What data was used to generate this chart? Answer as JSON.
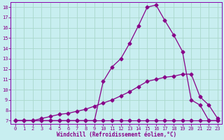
{
  "xlabel": "Windchill (Refroidissement éolien,°C)",
  "background_color": "#c8eef0",
  "grid_color": "#aad8cc",
  "line_color": "#880088",
  "spine_color": "#8800aa",
  "xlim": [
    -0.5,
    23.5
  ],
  "ylim": [
    6.7,
    18.5
  ],
  "yticks": [
    7,
    8,
    9,
    10,
    11,
    12,
    13,
    14,
    15,
    16,
    17,
    18
  ],
  "xticks": [
    0,
    1,
    2,
    3,
    4,
    5,
    6,
    7,
    8,
    9,
    10,
    11,
    12,
    13,
    14,
    15,
    16,
    17,
    18,
    19,
    20,
    21,
    22,
    23
  ],
  "line1_x": [
    0,
    1,
    2,
    3,
    4,
    5,
    6,
    7,
    8,
    9,
    10,
    11,
    12,
    13,
    14,
    15,
    16,
    17,
    18,
    19,
    20,
    21,
    22,
    23
  ],
  "line1_y": [
    7.0,
    7.0,
    7.0,
    7.0,
    7.0,
    7.0,
    7.0,
    7.0,
    7.0,
    7.0,
    7.0,
    7.0,
    7.0,
    7.0,
    7.0,
    7.0,
    7.0,
    7.0,
    7.0,
    7.0,
    7.0,
    7.0,
    7.0,
    7.0
  ],
  "line2_x": [
    0,
    1,
    2,
    3,
    4,
    5,
    6,
    7,
    8,
    9,
    10,
    11,
    12,
    13,
    14,
    15,
    16,
    17,
    18,
    19,
    20,
    21,
    22,
    23
  ],
  "line2_y": [
    7.0,
    7.0,
    7.0,
    7.2,
    7.4,
    7.6,
    7.7,
    7.9,
    8.1,
    8.4,
    8.7,
    9.0,
    9.4,
    9.8,
    10.3,
    10.8,
    11.0,
    11.2,
    11.3,
    11.5,
    11.5,
    9.3,
    8.5,
    7.2
  ],
  "line3_x": [
    0,
    1,
    2,
    3,
    4,
    5,
    6,
    7,
    8,
    9,
    10,
    11,
    12,
    13,
    14,
    15,
    16,
    17,
    18,
    19,
    20,
    21,
    22,
    23
  ],
  "line3_y": [
    7.0,
    7.0,
    7.0,
    7.0,
    7.0,
    7.0,
    7.0,
    7.0,
    7.0,
    7.0,
    10.8,
    12.2,
    13.0,
    14.5,
    16.2,
    18.0,
    18.2,
    16.7,
    15.3,
    13.7,
    9.0,
    8.5,
    7.0,
    7.0
  ]
}
